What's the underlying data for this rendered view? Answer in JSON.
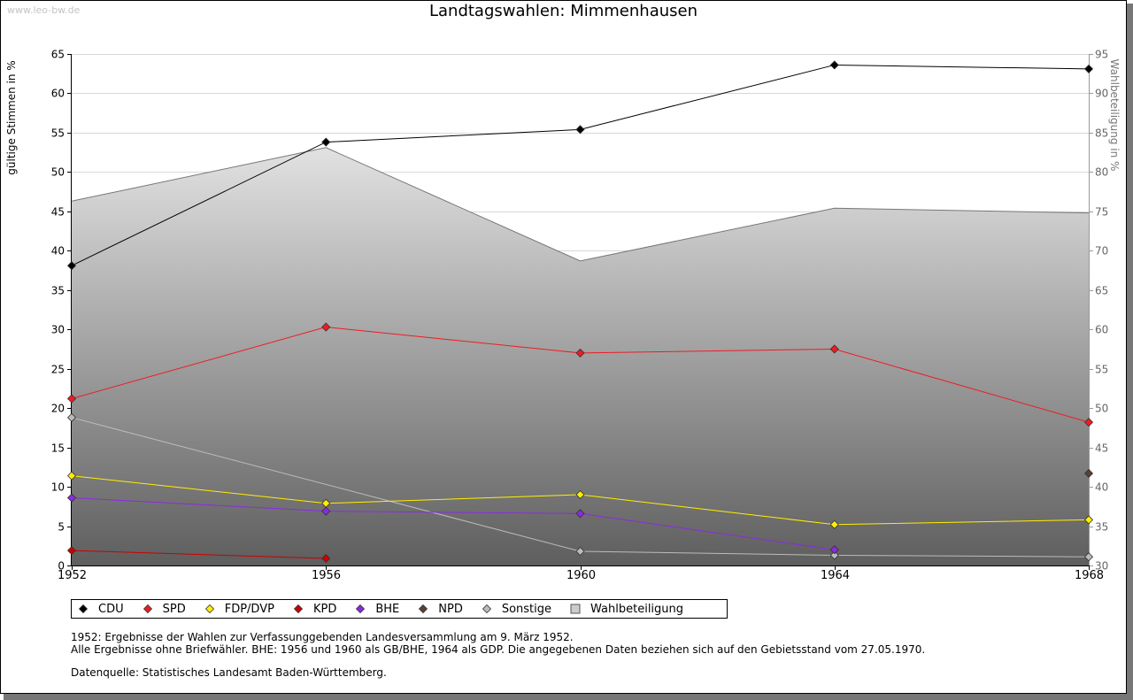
{
  "watermark": "www.leo-bw.de",
  "chart_data": {
    "type": "line",
    "title": "Landtagswahlen: Mimmenhausen",
    "ylabel_left": "gültige Stimmen in %",
    "ylabel_right": "Wahlbeteiligung in %",
    "x": [
      1952,
      1956,
      1960,
      1964,
      1968
    ],
    "ylim_left": [
      0,
      65
    ],
    "yticks_left": [
      0,
      5,
      10,
      15,
      20,
      25,
      30,
      35,
      40,
      45,
      50,
      55,
      60,
      65
    ],
    "ylim_right": [
      30,
      95
    ],
    "yticks_right": [
      30,
      35,
      40,
      45,
      50,
      55,
      60,
      65,
      70,
      75,
      80,
      85,
      90,
      95
    ],
    "grid": true,
    "legend_position": "bottom",
    "series": [
      {
        "name": "CDU",
        "color": "#000000",
        "values": [
          38.1,
          53.8,
          55.4,
          63.6,
          63.1
        ]
      },
      {
        "name": "SPD",
        "color": "#ee1c25",
        "values": [
          21.2,
          30.3,
          27.0,
          27.5,
          18.2
        ]
      },
      {
        "name": "FDP/DVP",
        "color": "#ffee00",
        "values": [
          11.4,
          7.9,
          9.0,
          5.2,
          5.8
        ]
      },
      {
        "name": "KPD",
        "color": "#cc0000",
        "values": [
          1.9,
          0.9,
          null,
          null,
          null
        ]
      },
      {
        "name": "BHE",
        "color": "#8a2be2",
        "values": [
          8.6,
          6.9,
          6.6,
          2.0,
          null
        ]
      },
      {
        "name": "NPD",
        "color": "#5c4033",
        "values": [
          null,
          null,
          null,
          null,
          11.7
        ]
      },
      {
        "name": "Sonstige",
        "color": "#bbbbbb",
        "values": [
          18.8,
          null,
          1.8,
          1.3,
          1.1
        ]
      },
      {
        "name": "Wahlbeteiligung",
        "color": "#777777",
        "axis": "right",
        "type": "area",
        "values": [
          76.3,
          83.1,
          68.7,
          75.4,
          74.8
        ]
      }
    ]
  },
  "legend": [
    "CDU",
    "SPD",
    "FDP/DVP",
    "KPD",
    "BHE",
    "NPD",
    "Sonstige",
    "Wahlbeteiligung"
  ],
  "notes": {
    "line1": "1952: Ergebnisse der Wahlen zur Verfassunggebenden Landesversammlung am 9. März 1952.",
    "line2": "Alle Ergebnisse ohne Briefwähler. BHE: 1956 und 1960 als GB/BHE, 1964 als GDP. Die angegebenen Daten beziehen sich auf den Gebietsstand vom 27.05.1970.",
    "line3": "Datenquelle: Statistisches Landesamt Baden-Württemberg."
  }
}
